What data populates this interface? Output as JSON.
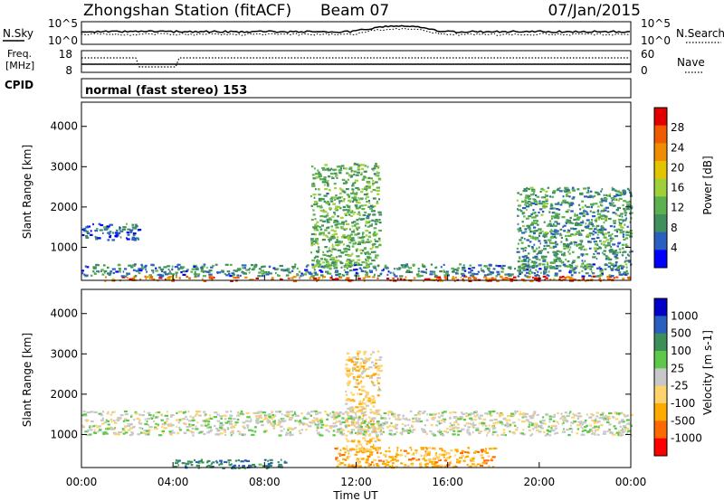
{
  "header": {
    "title": "Zhongshan Station (fitACF)",
    "beam": "Beam 07",
    "date": "07/Jan/2015"
  },
  "noise_panel": {
    "left_label": "N.Sky",
    "right_label": "N.Search",
    "left_ticks": [
      "10^5",
      "10^0"
    ],
    "right_ticks": [
      "10^5",
      "10^0"
    ]
  },
  "freq_panel": {
    "left_label_1": "Freq.",
    "left_label_2": "[MHz]",
    "right_label": "Nave",
    "left_ticks": [
      "18",
      "8"
    ],
    "right_ticks": [
      "60",
      "0"
    ],
    "cpid_label": "CPID"
  },
  "mode_text": "normal (fast stereo) 153",
  "colors": {
    "power": [
      "#0000ff",
      "#2b5fbf",
      "#3f8f5f",
      "#5ab14e",
      "#9fd03a",
      "#e2c400",
      "#f08c00",
      "#f05a00",
      "#e00000"
    ],
    "velocity": [
      "#ff0000",
      "#ff6a00",
      "#ffaa00",
      "#ffd36b",
      "#c8c8c8",
      "#5ec84a",
      "#3d8f5a",
      "#2a5fbf",
      "#0000c8"
    ]
  },
  "chart_data": [
    {
      "type": "heatmap",
      "name": "power",
      "ylabel": "Slant Range [km]",
      "yticks": [
        "4000",
        "3000",
        "2000",
        "1000"
      ],
      "ylim": [
        180,
        4600
      ],
      "xlim": [
        "00:00",
        "24:00"
      ],
      "colorbar": {
        "label": "Power [dB]",
        "ticks": [
          "28",
          "24",
          "20",
          "16",
          "12",
          "8",
          "4"
        ],
        "range": [
          0,
          32
        ]
      },
      "features": [
        {
          "range_km": [
            180,
            300
          ],
          "time": [
            "01:00",
            "24:00"
          ],
          "value_db": 26
        },
        {
          "range_km": [
            300,
            600
          ],
          "time": [
            "00:00",
            "24:00"
          ],
          "value_db": 8
        },
        {
          "range_km": [
            1200,
            1600
          ],
          "time": [
            "00:00",
            "02:30"
          ],
          "value_db": 6
        },
        {
          "range_km": [
            500,
            3100
          ],
          "time": [
            "10:00",
            "13:00"
          ],
          "value_db": 12
        },
        {
          "range_km": [
            500,
            2500
          ],
          "time": [
            "19:00",
            "24:00"
          ],
          "value_db": 10
        }
      ]
    },
    {
      "type": "heatmap",
      "name": "velocity",
      "ylabel": "Slant Range [km]",
      "yticks": [
        "4000",
        "3000",
        "2000",
        "1000"
      ],
      "ylim": [
        180,
        4600
      ],
      "xlim": [
        "00:00",
        "24:00"
      ],
      "xlabel": "Time UT",
      "xticks": [
        "00:00",
        "04:00",
        "08:00",
        "12:00",
        "16:00",
        "20:00",
        "00:00"
      ],
      "colorbar": {
        "label": "Velocity [m s-1]",
        "ticks": [
          "1000",
          "500",
          "100",
          "25",
          "-25",
          "-100",
          "-500",
          "-1000"
        ],
        "range": [
          -1200,
          1200
        ]
      },
      "features": [
        {
          "range_km": [
            180,
            400
          ],
          "time": [
            "04:00",
            "09:00"
          ],
          "value_ms": 600
        },
        {
          "range_km": [
            200,
            700
          ],
          "time": [
            "11:00",
            "18:00"
          ],
          "value_ms": -500
        },
        {
          "range_km": [
            600,
            3100
          ],
          "time": [
            "11:30",
            "13:00"
          ],
          "value_ms": -300
        },
        {
          "range_km": [
            1000,
            1600
          ],
          "time": [
            "00:00",
            "24:00"
          ],
          "value_ms": 0
        }
      ]
    }
  ]
}
